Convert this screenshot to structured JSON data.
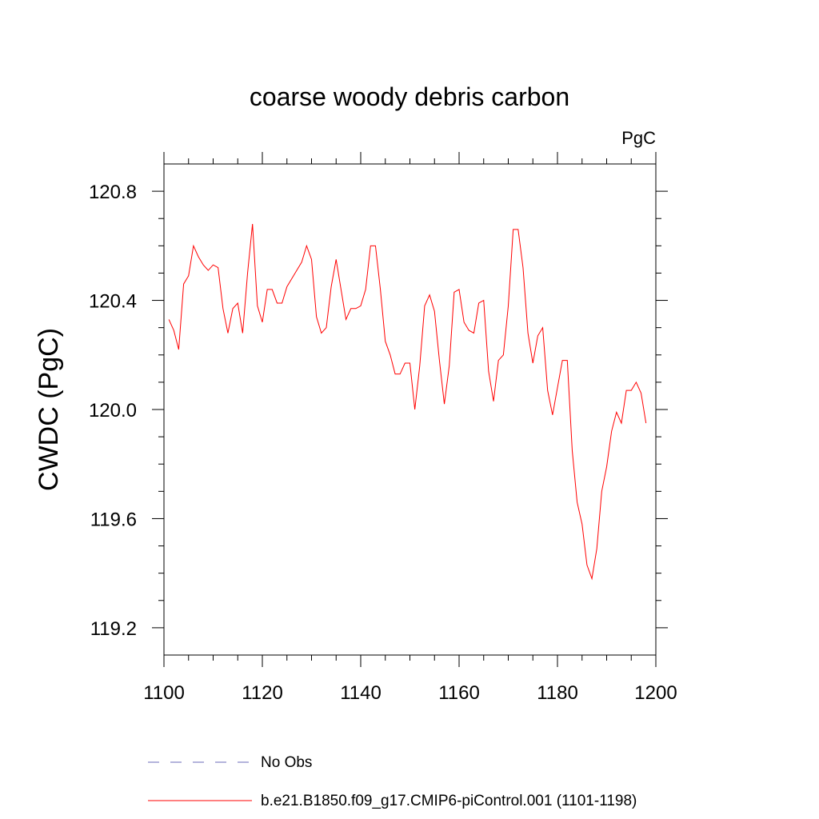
{
  "chart_data": {
    "type": "line",
    "title": "coarse woody debris carbon",
    "units": "PgC",
    "xlabel": "",
    "ylabel": "CWDC  (PgC)",
    "xlim": [
      1100,
      1200
    ],
    "ylim": [
      119.1,
      120.9
    ],
    "x_ticks": [
      1100,
      1120,
      1140,
      1160,
      1180,
      1200
    ],
    "x_tick_labels": [
      "1100",
      "1120",
      "1140",
      "1160",
      "1180",
      "1200"
    ],
    "y_ticks": [
      119.2,
      119.6,
      120.0,
      120.4,
      120.8
    ],
    "y_tick_labels": [
      "119.2",
      "119.6",
      "120.0",
      "120.4",
      "120.8"
    ],
    "grid": false,
    "legend_position": "bottom",
    "series": [
      {
        "name": "No Obs",
        "color": "#6a6ab8",
        "dash": "dashed",
        "x": [],
        "values": []
      },
      {
        "name": "b.e21.B1850.f09_g17.CMIP6-piControl.001 (1101-1198)",
        "color": "#ff0000",
        "dash": "solid",
        "x": [
          1101,
          1102,
          1103,
          1104,
          1105,
          1106,
          1107,
          1108,
          1109,
          1110,
          1111,
          1112,
          1113,
          1114,
          1115,
          1116,
          1117,
          1118,
          1119,
          1120,
          1121,
          1122,
          1123,
          1124,
          1125,
          1126,
          1127,
          1128,
          1129,
          1130,
          1131,
          1132,
          1133,
          1134,
          1135,
          1136,
          1137,
          1138,
          1139,
          1140,
          1141,
          1142,
          1143,
          1144,
          1145,
          1146,
          1147,
          1148,
          1149,
          1150,
          1151,
          1152,
          1153,
          1154,
          1155,
          1156,
          1157,
          1158,
          1159,
          1160,
          1161,
          1162,
          1163,
          1164,
          1165,
          1166,
          1167,
          1168,
          1169,
          1170,
          1171,
          1172,
          1173,
          1174,
          1175,
          1176,
          1177,
          1178,
          1179,
          1180,
          1181,
          1182,
          1183,
          1184,
          1185,
          1186,
          1187,
          1188,
          1189,
          1190,
          1191,
          1192,
          1193,
          1194,
          1195,
          1196,
          1197,
          1198
        ],
        "values": [
          120.33,
          120.29,
          120.22,
          120.46,
          120.49,
          120.6,
          120.56,
          120.53,
          120.51,
          120.53,
          120.52,
          120.37,
          120.28,
          120.37,
          120.39,
          120.28,
          120.5,
          120.68,
          120.38,
          120.32,
          120.44,
          120.44,
          120.39,
          120.39,
          120.45,
          120.48,
          120.51,
          120.54,
          120.6,
          120.55,
          120.34,
          120.28,
          120.3,
          120.45,
          120.55,
          120.44,
          120.33,
          120.37,
          120.37,
          120.38,
          120.44,
          120.6,
          120.6,
          120.44,
          120.25,
          120.2,
          120.13,
          120.13,
          120.17,
          120.17,
          120.0,
          120.16,
          120.38,
          120.42,
          120.36,
          120.18,
          120.02,
          120.16,
          120.43,
          120.44,
          120.32,
          120.29,
          120.28,
          120.39,
          120.4,
          120.14,
          120.03,
          120.18,
          120.2,
          120.38,
          120.66,
          120.66,
          120.52,
          120.28,
          120.17,
          120.27,
          120.3,
          120.07,
          119.98,
          120.08,
          120.18,
          120.18,
          119.85,
          119.66,
          119.58,
          119.43,
          119.38,
          119.49,
          119.7,
          119.79,
          119.92,
          119.99,
          119.95,
          120.07,
          120.07,
          120.1,
          120.06,
          119.95
        ]
      }
    ]
  }
}
